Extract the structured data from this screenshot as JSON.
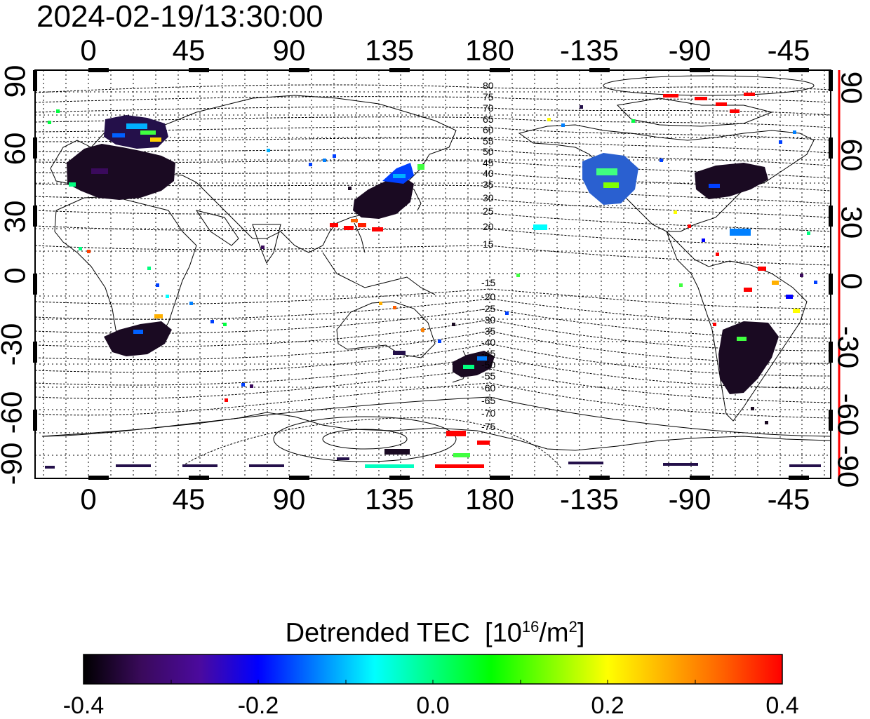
{
  "timestamp": "2024-02-19/13:30:00",
  "top_lon_ticks": [
    "0",
    "45",
    "90",
    "135",
    "180",
    "-135",
    "-90",
    "-45"
  ],
  "bottom_lon_ticks": [
    "0",
    "45",
    "90",
    "135",
    "180",
    "-135",
    "-90",
    "-45"
  ],
  "left_lat_ticks": [
    "90",
    "60",
    "30",
    "0",
    "-30",
    "-60",
    "-90"
  ],
  "right_lat_ticks": [
    "90",
    "60",
    "30",
    "0",
    "-30",
    "-60",
    "-90"
  ],
  "contour_labels_north": [
    "80",
    "75",
    "70",
    "65",
    "60",
    "55",
    "50",
    "45",
    "40",
    "35",
    "30",
    "25",
    "20",
    "15"
  ],
  "contour_labels_south": [
    "-15",
    "-20",
    "-25",
    "-30",
    "-35",
    "-40",
    "-45",
    "-50",
    "-55",
    "-60",
    "-65",
    "-70",
    "-75"
  ],
  "colorbar": {
    "title_main": "Detrended TEC",
    "unit_prefix": "[10",
    "unit_exp": "16",
    "unit_mid": "/m",
    "unit_exp2": "2",
    "unit_suffix": "]",
    "tick_labels": [
      "-0.4",
      "-0.2",
      "0.0",
      "0.2",
      "0.4"
    ],
    "range": [
      -0.4,
      0.4
    ],
    "colors": [
      "#000000",
      "#3a0a5c",
      "#4b0a9e",
      "#0000ff",
      "#0080ff",
      "#00ffff",
      "#00ff80",
      "#00ff00",
      "#80ff00",
      "#ffff00",
      "#ffb000",
      "#ff6000",
      "#ff0000"
    ]
  },
  "colors": {
    "frame": "#000000",
    "grid": "#000000",
    "right_marker": "#ff0000"
  }
}
